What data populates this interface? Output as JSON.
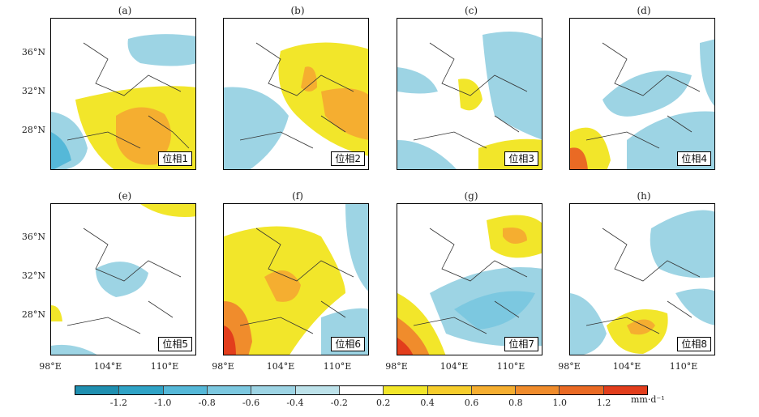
{
  "map": {
    "panels": [
      {
        "label": "(a)",
        "phase": "位相1"
      },
      {
        "label": "(b)",
        "phase": "位相2"
      },
      {
        "label": "(c)",
        "phase": "位相3"
      },
      {
        "label": "(d)",
        "phase": "位相4"
      },
      {
        "label": "(e)",
        "phase": "位相5"
      },
      {
        "label": "(f)",
        "phase": "位相6"
      },
      {
        "label": "(g)",
        "phase": "位相7"
      },
      {
        "label": "(h)",
        "phase": "位相8"
      }
    ],
    "lat_ticks": [
      "36°N",
      "32°N",
      "28°N"
    ],
    "lon_ticks": [
      "98°E",
      "104°E",
      "110°E"
    ],
    "colorbar": {
      "labels": [
        "-1.2",
        "-1.0",
        "-0.8",
        "-0.6",
        "-0.4",
        "-0.2",
        "0.2",
        "0.4",
        "0.6",
        "0.8",
        "1.0",
        "1.2"
      ],
      "unit": "mm·d⁻¹",
      "colors": [
        "#1f8fb0",
        "#2fa3c6",
        "#55b8d8",
        "#7cc8e0",
        "#9dd4e4",
        "#bde2ea",
        "#ffffff",
        "#f2e62a",
        "#f6cd2c",
        "#f5ae30",
        "#f08c2c",
        "#ea6a24",
        "#e23d1c"
      ]
    }
  }
}
